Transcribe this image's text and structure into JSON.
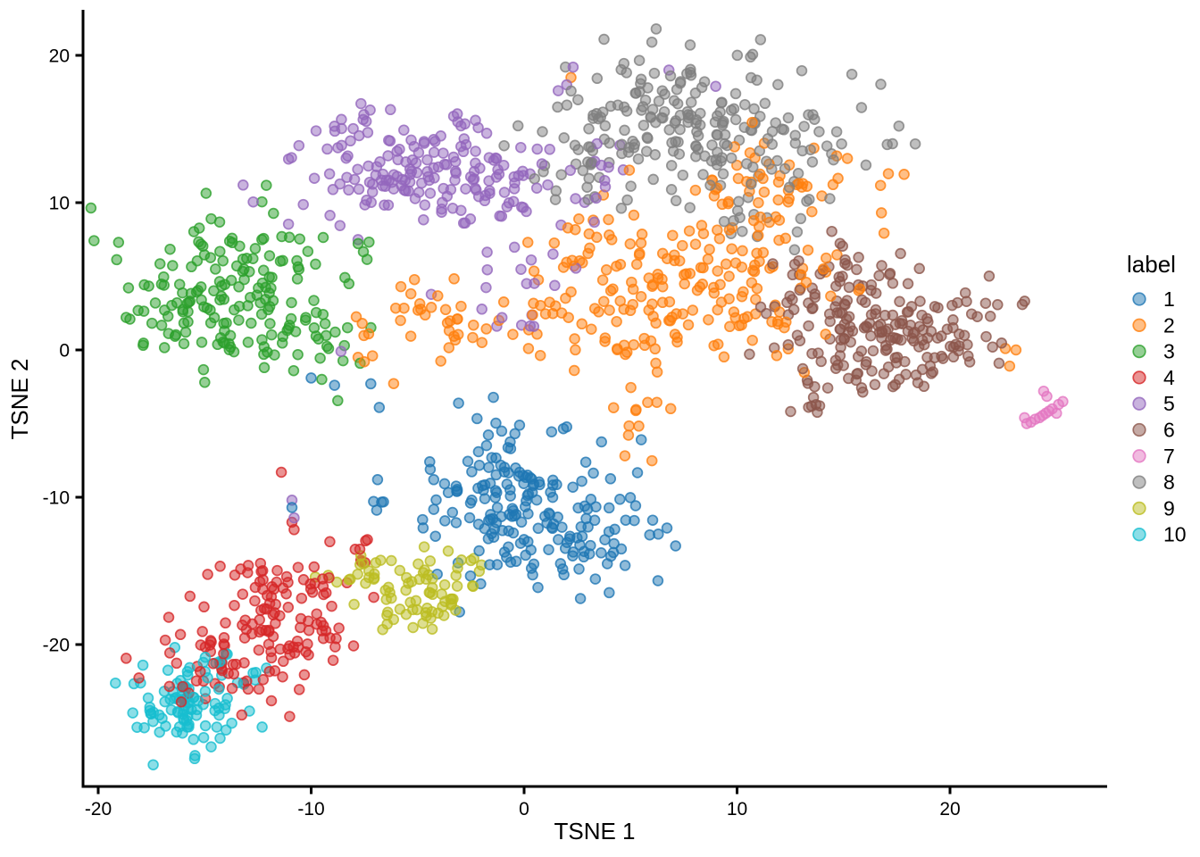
{
  "chart_data": {
    "type": "scatter",
    "title": "",
    "xlabel": "TSNE 1",
    "ylabel": "TSNE 2",
    "legend_title": "label",
    "legend_position": "right",
    "grid": false,
    "background": "#ffffff",
    "axis_color": "#000000",
    "x_ticks": [
      -20,
      -10,
      0,
      10,
      20
    ],
    "y_ticks": [
      -20,
      -10,
      0,
      10,
      20
    ],
    "xlim": [
      -20.7,
      27.4
    ],
    "ylim": [
      -29.6,
      23.0
    ],
    "point_style": {
      "radius": 5.4,
      "fill_opacity": 0.5,
      "stroke_opacity": 0.8,
      "stroke_width": 1.7
    },
    "series": [
      {
        "name": "1",
        "color": "#1f77b4",
        "blobs": [
          {
            "cx": -0.2,
            "cy": -10.5,
            "sx": 2.4,
            "sy": 2.4,
            "n": 140
          },
          {
            "cx": 2.6,
            "cy": -13.2,
            "sx": 1.9,
            "sy": 1.6,
            "n": 45
          },
          {
            "cx": -1.5,
            "cy": -7.0,
            "sx": 1.2,
            "sy": 1.3,
            "n": 18
          }
        ],
        "points": [
          [
            -10.0,
            -1.9
          ],
          [
            -8.9,
            -2.4
          ],
          [
            -7.2,
            -2.3
          ],
          [
            -6.8,
            -3.9
          ],
          [
            -10.9,
            -10.7
          ],
          [
            5.5,
            -6.1
          ],
          [
            6.3,
            -12.5
          ]
        ]
      },
      {
        "name": "2",
        "color": "#ff7f0e",
        "blobs": [
          {
            "cx": 9.3,
            "cy": 4.8,
            "sx": 3.3,
            "sy": 2.6,
            "n": 130
          },
          {
            "cx": 3.4,
            "cy": 2.0,
            "sx": 2.6,
            "sy": 2.0,
            "n": 50
          },
          {
            "cx": -3.2,
            "cy": 2.3,
            "sx": 2.3,
            "sy": 1.7,
            "n": 38
          },
          {
            "cx": 13.3,
            "cy": 10.8,
            "sx": 2.2,
            "sy": 1.8,
            "n": 32
          },
          {
            "cx": 5.3,
            "cy": -3.6,
            "sx": 0.7,
            "sy": 1.9,
            "n": 13
          },
          {
            "cx": 10.8,
            "cy": 11.5,
            "sx": 1.2,
            "sy": 1.2,
            "n": 14
          },
          {
            "cx": 2.6,
            "cy": 7.2,
            "sx": 1.3,
            "sy": 1.5,
            "n": 22
          }
        ],
        "points": [
          [
            2.2,
            18.5
          ],
          [
            22.6,
            0.1
          ],
          [
            23.1,
            0.0
          ],
          [
            22.8,
            -1.1
          ],
          [
            -7.6,
            1.8
          ],
          [
            -7.3,
            1.1
          ],
          [
            -7.8,
            -0.5
          ],
          [
            -7.5,
            -0.8
          ]
        ]
      },
      {
        "name": "3",
        "color": "#2ca02c",
        "blobs": [
          {
            "cx": -13.8,
            "cy": 4.2,
            "sx": 2.5,
            "sy": 2.3,
            "n": 150
          },
          {
            "cx": -10.3,
            "cy": 0.3,
            "sx": 1.4,
            "sy": 1.4,
            "n": 24
          },
          {
            "cx": -16.5,
            "cy": 1.5,
            "sx": 1.0,
            "sy": 1.2,
            "n": 12
          }
        ],
        "points": [
          [
            -7.7,
            -0.9
          ],
          [
            -9.5,
            -2.0
          ],
          [
            -15.0,
            -2.2
          ]
        ]
      },
      {
        "name": "4",
        "color": "#d62728",
        "blobs": [
          {
            "cx": -11.4,
            "cy": -16.3,
            "sx": 1.6,
            "sy": 1.5,
            "n": 60
          },
          {
            "cx": -13.3,
            "cy": -21.3,
            "sx": 1.7,
            "sy": 1.8,
            "n": 75
          },
          {
            "cx": -10.3,
            "cy": -19.3,
            "sx": 1.0,
            "sy": 1.2,
            "n": 18
          },
          {
            "cx": -7.6,
            "cy": -13.6,
            "sx": 0.6,
            "sy": 0.5,
            "n": 8
          }
        ],
        "points": [
          [
            -11.4,
            -8.3
          ],
          [
            -10.9,
            -11.7
          ],
          [
            -10.8,
            -12.2
          ],
          [
            -16.1,
            -23.9
          ]
        ]
      },
      {
        "name": "5",
        "color": "#9467bd",
        "blobs": [
          {
            "cx": -4.8,
            "cy": 12.0,
            "sx": 2.7,
            "sy": 2.1,
            "n": 155
          },
          {
            "cx": 0.3,
            "cy": 9.2,
            "sx": 2.0,
            "sy": 2.0,
            "n": 26
          },
          {
            "cx": -0.6,
            "cy": 3.6,
            "sx": 1.6,
            "sy": 1.7,
            "n": 12
          },
          {
            "cx": -9.2,
            "cy": 14.8,
            "sx": 1.2,
            "sy": 1.0,
            "n": 12
          },
          {
            "cx": 3.4,
            "cy": 13.0,
            "sx": 1.0,
            "sy": 1.3,
            "n": 8
          }
        ],
        "points": [
          [
            2.3,
            19.2
          ],
          [
            2.0,
            18.0
          ],
          [
            1.6,
            17.6
          ],
          [
            -10.9,
            -10.2
          ],
          [
            -10.8,
            -11.4
          ],
          [
            6.8,
            19.0
          ],
          [
            9.0,
            17.9
          ],
          [
            4.5,
            13.9
          ],
          [
            -8.6,
            -0.1
          ]
        ]
      },
      {
        "name": "6",
        "color": "#8c564b",
        "blobs": [
          {
            "cx": 16.4,
            "cy": 1.3,
            "sx": 2.4,
            "sy": 2.1,
            "n": 165
          },
          {
            "cx": 15.3,
            "cy": 5.4,
            "sx": 1.9,
            "sy": 1.0,
            "n": 26
          },
          {
            "cx": 13.9,
            "cy": -3.2,
            "sx": 0.8,
            "sy": 0.9,
            "n": 12
          },
          {
            "cx": 20.3,
            "cy": 1.0,
            "sx": 1.2,
            "sy": 1.2,
            "n": 14
          }
        ],
        "points": [
          [
            22.0,
            0.2
          ],
          [
            22.3,
            -0.9
          ],
          [
            21.7,
            0.9
          ]
        ]
      },
      {
        "name": "7",
        "color": "#e377c2",
        "blobs": [],
        "points": [
          [
            23.6,
            -5.0
          ],
          [
            23.8,
            -4.9
          ],
          [
            24.0,
            -4.7
          ],
          [
            24.2,
            -4.6
          ],
          [
            24.35,
            -4.45
          ],
          [
            24.5,
            -4.3
          ],
          [
            24.65,
            -4.15
          ],
          [
            24.8,
            -4.0
          ],
          [
            25.1,
            -3.7
          ],
          [
            25.3,
            -3.5
          ],
          [
            24.4,
            -2.8
          ],
          [
            24.55,
            -3.15
          ],
          [
            23.5,
            -4.6
          ],
          [
            25.0,
            -4.3
          ]
        ]
      },
      {
        "name": "8",
        "color": "#7f7f7f",
        "blobs": [
          {
            "cx": 7.3,
            "cy": 15.2,
            "sx": 3.1,
            "sy": 2.4,
            "n": 180
          },
          {
            "cx": 12.8,
            "cy": 13.4,
            "sx": 1.8,
            "sy": 1.5,
            "n": 30
          },
          {
            "cx": 10.6,
            "cy": 9.3,
            "sx": 1.6,
            "sy": 1.2,
            "n": 15
          },
          {
            "cx": 3.3,
            "cy": 12.4,
            "sx": 1.3,
            "sy": 1.1,
            "n": 12
          }
        ],
        "points": [
          [
            12.7,
            6.8
          ],
          [
            1.5,
            10.8
          ],
          [
            0.9,
            12.1
          ],
          [
            6.0,
            20.9
          ],
          [
            7.8,
            20.7
          ],
          [
            17.3,
            14.0
          ],
          [
            17.6,
            15.2
          ]
        ]
      },
      {
        "name": "9",
        "color": "#bcbd22",
        "blobs": [
          {
            "cx": -5.1,
            "cy": -17.0,
            "sx": 1.4,
            "sy": 1.5,
            "n": 62
          },
          {
            "cx": -7.3,
            "cy": -14.6,
            "sx": 0.9,
            "sy": 0.8,
            "n": 12
          },
          {
            "cx": -3.0,
            "cy": -15.0,
            "sx": 0.8,
            "sy": 0.8,
            "n": 8
          }
        ],
        "points": [
          [
            -9.2,
            -15.3
          ],
          [
            -2.0,
            -14.6
          ]
        ]
      },
      {
        "name": "10",
        "color": "#17becf",
        "blobs": [
          {
            "cx": -15.8,
            "cy": -24.6,
            "sx": 1.4,
            "sy": 1.6,
            "n": 88
          },
          {
            "cx": -14.0,
            "cy": -21.2,
            "sx": 1.2,
            "sy": 0.9,
            "n": 13
          }
        ],
        "points": [
          [
            -12.1,
            -21.6
          ],
          [
            -12.3,
            -25.6
          ],
          [
            -17.9,
            -21.4
          ],
          [
            -12.6,
            -21.9
          ]
        ]
      }
    ]
  }
}
